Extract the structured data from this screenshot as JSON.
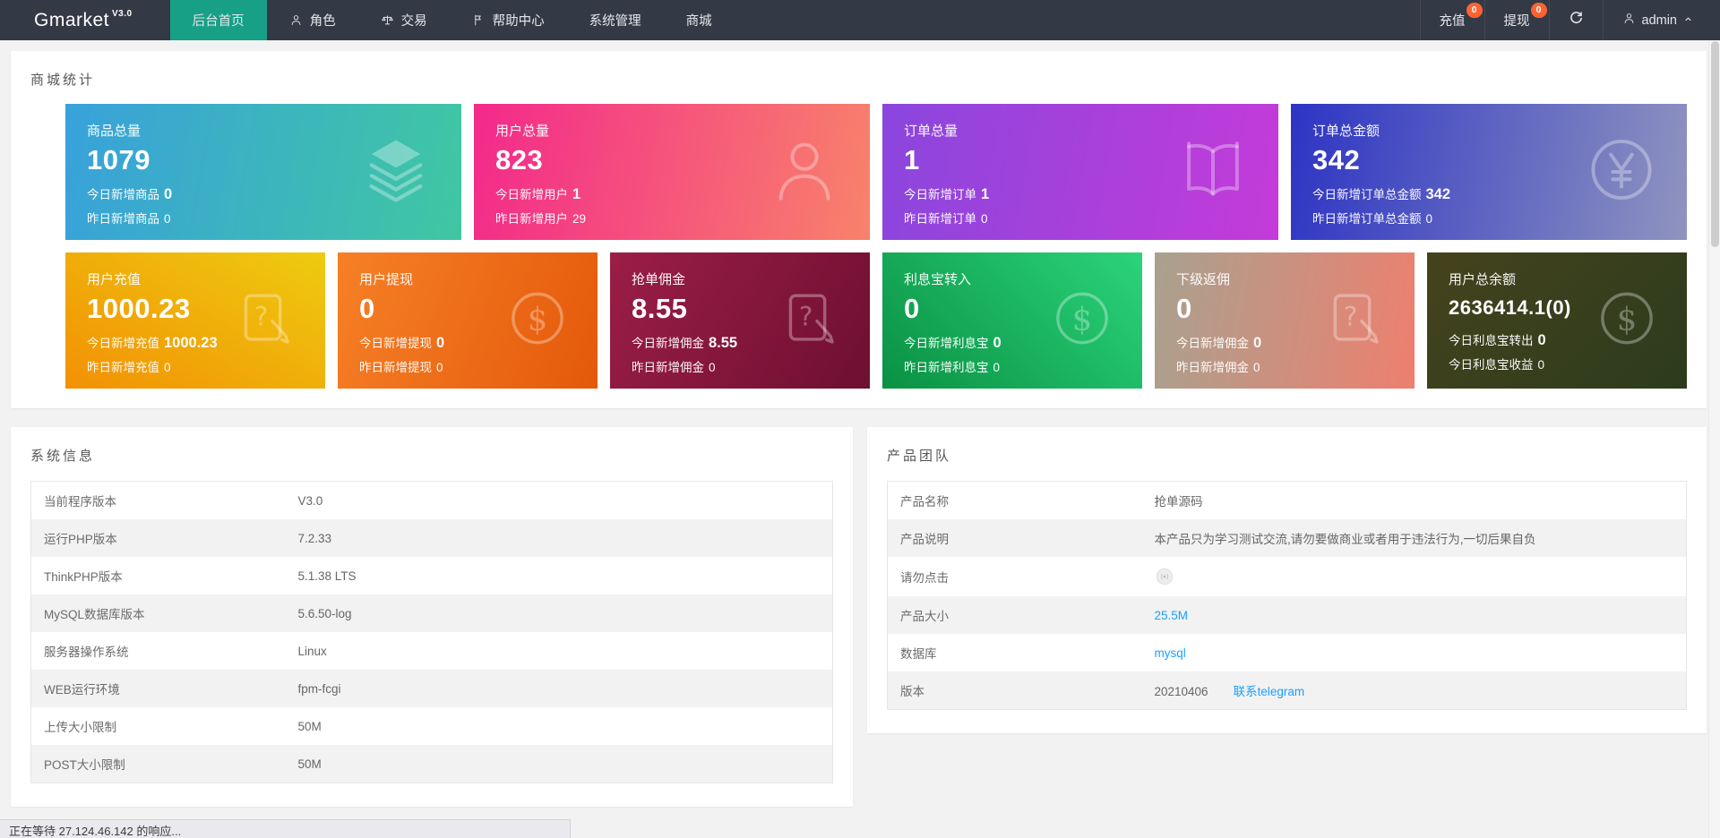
{
  "navbar": {
    "brand": "Gmarket",
    "brand_version": "V3.0",
    "bg_color": "#343a45",
    "active_color": "#17a086",
    "menu": [
      {
        "label": "后台首页",
        "icon": null,
        "active": true
      },
      {
        "label": "角色",
        "icon": "person-icon",
        "active": false
      },
      {
        "label": "交易",
        "icon": "scales-icon",
        "active": false
      },
      {
        "label": "帮助中心",
        "icon": "flag-icon",
        "active": false
      },
      {
        "label": "系统管理",
        "icon": null,
        "active": false
      },
      {
        "label": "商城",
        "icon": null,
        "active": false
      }
    ],
    "right": {
      "recharge_label": "充值",
      "recharge_badge": "0",
      "withdraw_label": "提现",
      "withdraw_badge": "0",
      "badge_color": "#ff6334",
      "user_label": "admin"
    }
  },
  "stats": {
    "section_title": "商城统计",
    "row1": [
      {
        "title": "商品总量",
        "value": "1079",
        "line1_label": "今日新增商品",
        "line1_value": "0",
        "line2_label": "昨日新增商品",
        "line2_value": "0",
        "icon": "layers-icon",
        "gradient": {
          "angle": 100,
          "from": "#38a1db",
          "to": "#40c7a2"
        }
      },
      {
        "title": "用户总量",
        "value": "823",
        "line1_label": "今日新增用户",
        "line1_value": "1",
        "line2_label": "昨日新增用户",
        "line2_value": "29",
        "icon": "user-icon",
        "gradient": {
          "angle": 100,
          "from": "#f3298b",
          "to": "#f8826b"
        }
      },
      {
        "title": "订单总量",
        "value": "1",
        "line1_label": "今日新增订单",
        "line1_value": "1",
        "line2_label": "昨日新增订单",
        "line2_value": "0",
        "icon": "book-icon",
        "gradient": {
          "angle": 100,
          "from": "#8a46dd",
          "to": "#c43bd9"
        }
      },
      {
        "title": "订单总金额",
        "value": "342",
        "line1_label": "今日新增订单总金额",
        "line1_value": "342",
        "line2_label": "昨日新增订单总金额",
        "line2_value": "0",
        "icon": "yen-circle-icon",
        "gradient": {
          "angle": 100,
          "from": "#2d34c4",
          "to": "#8f94bf"
        }
      }
    ],
    "row2": [
      {
        "title": "用户充值",
        "value": "1000.23",
        "line1_label": "今日新增充值",
        "line1_value": "1000.23",
        "line2_label": "昨日新增充值",
        "line2_value": "0",
        "icon": "doc-question-icon",
        "gradient": {
          "angle": 30,
          "from": "#f29104",
          "to": "#eecb10"
        }
      },
      {
        "title": "用户提现",
        "value": "0",
        "line1_label": "今日新增提现",
        "line1_value": "0",
        "line2_label": "昨日新增提现",
        "line2_value": "0",
        "icon": "dollar-circle-icon",
        "gradient": {
          "angle": 110,
          "from": "#f68026",
          "to": "#e4590b"
        }
      },
      {
        "title": "抢单佣金",
        "value": "8.55",
        "line1_label": "今日新增佣金",
        "line1_value": "8.55",
        "line2_label": "昨日新增佣金",
        "line2_value": "0",
        "icon": "doc-question-icon",
        "gradient": {
          "angle": 120,
          "from": "#9b1e47",
          "to": "#6e0f31"
        }
      },
      {
        "title": "利息宝转入",
        "value": "0",
        "line1_label": "今日新增利息宝",
        "line1_value": "0",
        "line2_label": "昨日新增利息宝",
        "line2_value": "0",
        "icon": "dollar-circle-icon",
        "gradient": {
          "angle": 45,
          "from": "#0a9143",
          "to": "#2bd47b"
        }
      },
      {
        "title": "下级返佣",
        "value": "0",
        "line1_label": "今日新增佣金",
        "line1_value": "0",
        "line2_label": "昨日新增佣金",
        "line2_value": "0",
        "icon": "doc-question-icon",
        "gradient": {
          "angle": 100,
          "from": "#a9a18f",
          "to": "#ee7f6e"
        }
      },
      {
        "title": "用户总余额",
        "value": "2636414.1(0)",
        "line1_label": "今日利息宝转出",
        "line1_value": "0",
        "line2_label": "今日利息宝收益",
        "line2_value": "0",
        "icon": "dollar-circle-icon",
        "gradient": {
          "angle": 135,
          "from": "#45431d",
          "to": "#2c3b1d"
        }
      }
    ]
  },
  "system_info": {
    "title": "系统信息",
    "rows": [
      {
        "label": "当前程序版本",
        "value": "V3.0"
      },
      {
        "label": "运行PHP版本",
        "value": "7.2.33"
      },
      {
        "label": "ThinkPHP版本",
        "value": "5.1.38 LTS"
      },
      {
        "label": "MySQL数据库版本",
        "value": "5.6.50-log"
      },
      {
        "label": "服务器操作系统",
        "value": "Linux"
      },
      {
        "label": "WEB运行环境",
        "value": "fpm-fcgi"
      },
      {
        "label": "上传大小限制",
        "value": "50M"
      },
      {
        "label": "POST大小限制",
        "value": "50M"
      }
    ]
  },
  "product_team": {
    "title": "产品团队",
    "link_color": "#1E9FFF",
    "rows": [
      {
        "label": "产品名称",
        "parts": [
          {
            "type": "text",
            "text": "抢单源码"
          }
        ]
      },
      {
        "label": "产品说明",
        "parts": [
          {
            "type": "text",
            "text": "本产品只为学习测试交流,请勿要做商业或者用于违法行为,一切后果自负"
          }
        ]
      },
      {
        "label": "请勿点击",
        "parts": [
          {
            "type": "icon",
            "icon": "do-not-click-icon"
          }
        ]
      },
      {
        "label": "产品大小",
        "parts": [
          {
            "type": "link",
            "text": "25.5M"
          }
        ]
      },
      {
        "label": "数据库",
        "parts": [
          {
            "type": "link",
            "text": "mysql"
          }
        ]
      },
      {
        "label": "版本",
        "parts": [
          {
            "type": "text",
            "text": "20210406"
          },
          {
            "type": "link",
            "text": "联系telegram"
          }
        ]
      }
    ]
  },
  "status_bar": {
    "text": "正在等待 27.124.46.142 的响应..."
  }
}
